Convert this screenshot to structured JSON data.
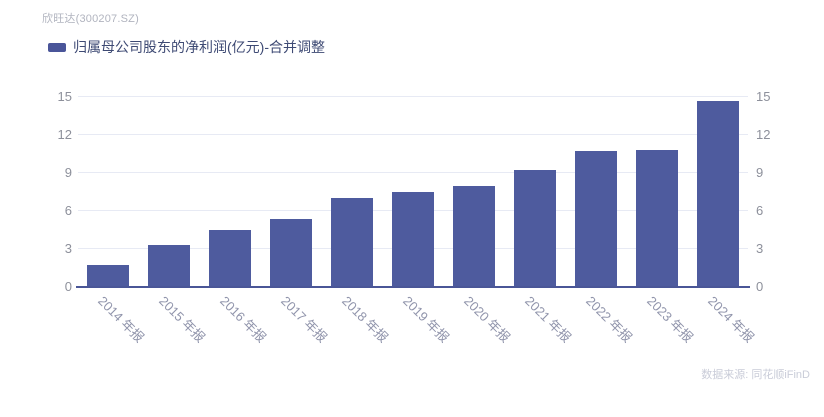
{
  "header": {
    "title": "欣旺达(300207.SZ)"
  },
  "legend": {
    "label": "归属母公司股东的净利润(亿元)-合并调整",
    "marker_color": "#4a5599"
  },
  "source_note": "数据来源: 同花顺iFinD",
  "colors": {
    "bar": "#4e5b9e",
    "axis_line": "#4a5697",
    "gridline": "#e7eaf4",
    "ytick_label": "#8d909b",
    "xtick_label": "#9094ab",
    "title": "#b1b4bf",
    "legend_text": "#3e4a74",
    "source_text": "#c9ccd8"
  },
  "chart_data": {
    "type": "bar",
    "title": "欣旺达(300207.SZ)",
    "series_name": "归属母公司股东的净利润(亿元)-合并调整",
    "categories": [
      "2014 年报",
      "2015 年报",
      "2016 年报",
      "2017 年报",
      "2018 年报",
      "2019 年报",
      "2020 年报",
      "2021 年报",
      "2022 年报",
      "2023 年报",
      "2024 年报"
    ],
    "values": [
      1.7,
      3.3,
      4.5,
      5.4,
      7.0,
      7.5,
      8.0,
      9.2,
      10.7,
      10.8,
      14.7
    ],
    "xlabel": "",
    "ylabel": "",
    "ylim": [
      0,
      15
    ],
    "yticks": [
      0,
      3,
      6,
      9,
      12,
      15
    ],
    "grid": true,
    "y_axis_sides": "both",
    "x_label_rotation_deg": 45,
    "legend_position": "top-left"
  }
}
